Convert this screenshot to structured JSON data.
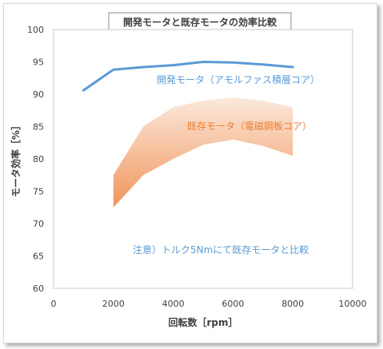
{
  "chart_data": {
    "type": "line",
    "title": "開発モータと既存モータの効率比較",
    "xlabel": "回転数［rpm］",
    "ylabel": "モータ効率［%］",
    "xlim": [
      0,
      10000
    ],
    "ylim": [
      60,
      100
    ],
    "x_ticks": [
      0,
      2000,
      4000,
      6000,
      8000,
      10000
    ],
    "y_ticks": [
      60,
      65,
      70,
      75,
      80,
      85,
      90,
      95,
      100
    ],
    "grid": false,
    "colors": {
      "developed": "#5b9bd5",
      "existing_label": "#ed7d31",
      "band_top": "#fbe9dc",
      "band_bottom": "#f0955a"
    },
    "series": [
      {
        "name": "開発モータ（アモルファス積層コア）",
        "kind": "line",
        "x": [
          1000,
          2000,
          3000,
          4000,
          5000,
          6000,
          7000,
          8000
        ],
        "y": [
          90.6,
          93.8,
          94.2,
          94.5,
          95.0,
          94.9,
          94.6,
          94.2
        ]
      },
      {
        "name": "既存モータ（電磁鋼板コア）",
        "kind": "band",
        "x": [
          2000,
          3000,
          4000,
          5000,
          6000,
          7000,
          8000
        ],
        "y_upper": [
          77.5,
          85.0,
          88.0,
          89.0,
          89.5,
          89.0,
          88.0
        ],
        "y_lower": [
          72.5,
          77.5,
          80.0,
          82.2,
          83.0,
          82.0,
          80.5
        ]
      }
    ],
    "annotation": "注意）トルク5Nmにて既存モータと比較"
  }
}
